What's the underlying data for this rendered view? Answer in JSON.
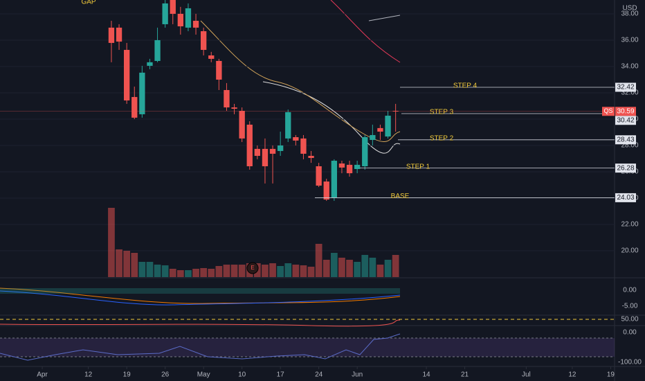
{
  "chart_data": {
    "type": "candlestick",
    "currency": "USD",
    "symbol": "QS",
    "annotation": "GAP",
    "annotation_marker": "E",
    "x": [
      9,
      10,
      11,
      12,
      13,
      14,
      15,
      16,
      17,
      18,
      19,
      20,
      21,
      22,
      23,
      24,
      25,
      26,
      27,
      28,
      29,
      30,
      31,
      32,
      33,
      34,
      35,
      36,
      37,
      38,
      39,
      40,
      41,
      42,
      43,
      44,
      45,
      46
    ],
    "open": [
      36.95,
      36.95,
      35.26,
      31.68,
      30.37,
      34.05,
      34.42,
      37.21,
      39.05,
      38.0,
      36.95,
      37.47,
      36.68,
      34.84,
      34.42,
      32.21,
      30.89,
      30.63,
      29.58,
      27.74,
      27.74,
      27.74,
      27.58,
      28.53,
      28.63,
      28.53,
      27.21,
      26.42,
      25.26,
      24.05,
      26.63,
      26.53,
      26.21,
      26.42,
      28.42,
      29.32,
      28.68,
      30.63
    ],
    "high": [
      37.47,
      37.21,
      35.79,
      32.47,
      34.05,
      34.58,
      36.95,
      39.05,
      39.05,
      38.53,
      38.79,
      38.0,
      36.95,
      35.11,
      34.58,
      32.74,
      31.16,
      30.89,
      29.84,
      28.0,
      28.53,
      28.0,
      29.05,
      30.73,
      28.79,
      28.79,
      27.58,
      26.68,
      25.47,
      26.95,
      26.84,
      26.84,
      26.84,
      28.79,
      29.58,
      29.58,
      30.63,
      31.16
    ],
    "low": [
      34.32,
      35.26,
      31.16,
      30.0,
      30.11,
      33.79,
      34.32,
      36.95,
      37.21,
      36.42,
      36.68,
      36.42,
      34.84,
      34.32,
      32.21,
      30.63,
      30.37,
      28.26,
      26.16,
      26.95,
      25.11,
      25.11,
      27.21,
      28.26,
      28.0,
      26.95,
      26.68,
      24.84,
      23.79,
      23.79,
      25.89,
      25.63,
      25.89,
      26.16,
      28.0,
      28.42,
      28.53,
      29.05
    ],
    "close": [
      35.79,
      35.89,
      31.42,
      30.11,
      33.53,
      34.32,
      36.0,
      38.79,
      38.0,
      37.05,
      38.42,
      36.95,
      35.26,
      34.58,
      33.0,
      30.89,
      30.79,
      28.53,
      26.42,
      27.21,
      26.42,
      27.37,
      28.0,
      30.53,
      28.37,
      27.37,
      27.05,
      24.95,
      23.89,
      26.84,
      26.32,
      25.89,
      26.53,
      28.63,
      28.79,
      29.05,
      30.26,
      30.59
    ],
    "volume": [
      30,
      12,
      11.4,
      10.5,
      6.6,
      6.6,
      5.4,
      5.1,
      3.6,
      3,
      3,
      3.6,
      3.9,
      3.6,
      4.8,
      5.4,
      5.4,
      5.4,
      6,
      6,
      5.4,
      6,
      4.8,
      6,
      5.4,
      5.1,
      4.5,
      14.4,
      7.5,
      10.5,
      8.4,
      7.5,
      6.6,
      9.6,
      8.4,
      5.4,
      7.5,
      9.6
    ],
    "volume_ylim": [
      0,
      30
    ],
    "up_color": "#26a69a",
    "down_color": "#ef5350",
    "ylim": [
      18,
      39.05
    ],
    "yticks": [
      {
        "value": 20,
        "label": "20.00"
      },
      {
        "value": 22,
        "label": "22.00"
      },
      {
        "value": 24,
        "label": "24.00"
      },
      {
        "value": 26,
        "label": "26.00"
      },
      {
        "value": 28,
        "label": "28.00"
      },
      {
        "value": 30,
        "label": "30.00"
      },
      {
        "value": 32,
        "label": "32.00"
      },
      {
        "value": 34,
        "label": "34.00"
      },
      {
        "value": 36,
        "label": "36.00"
      },
      {
        "value": 38,
        "label": "38.00"
      }
    ],
    "xlim": [
      -5.5,
      74.5
    ],
    "xticks": [
      {
        "value": 0,
        "label": "Apr"
      },
      {
        "value": 6,
        "label": "12"
      },
      {
        "value": 11,
        "label": "19"
      },
      {
        "value": 16,
        "label": "26"
      },
      {
        "value": 21,
        "label": "May"
      },
      {
        "value": 26,
        "label": "10"
      },
      {
        "value": 31,
        "label": "17"
      },
      {
        "value": 36,
        "label": "24"
      },
      {
        "value": 41,
        "label": "Jun"
      },
      {
        "value": 50,
        "label": "14"
      },
      {
        "value": 55,
        "label": "21"
      },
      {
        "value": 63,
        "label": "Jul"
      },
      {
        "value": 69,
        "label": "12"
      },
      {
        "value": 74,
        "label": "19"
      }
    ],
    "levels": [
      {
        "name": "STEP 4",
        "value": 32.42
      },
      {
        "name": "STEP 3",
        "value": 30.42
      },
      {
        "name": "STEP 2",
        "value": 28.43
      },
      {
        "name": "STEP 1",
        "value": 26.28
      },
      {
        "name": "BASE",
        "value": 24.03
      }
    ],
    "indicator_labels": [
      "0.00",
      "-5.00",
      "50.00",
      "0.00",
      "-100.00"
    ]
  }
}
